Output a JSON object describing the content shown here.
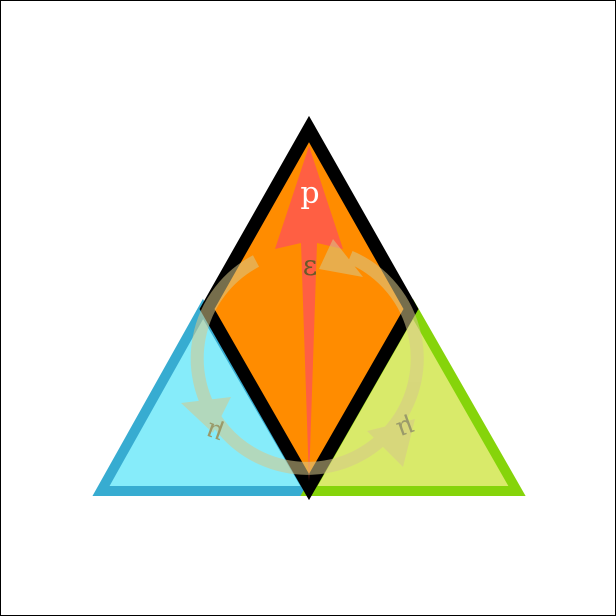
{
  "diagram": {
    "labels": {
      "top": "p",
      "center": "ε",
      "left": "μ",
      "right": "μ"
    },
    "colors": {
      "left_fill": "#86ecfa",
      "left_stroke": "#37acd1",
      "right_fill": "#d9ea6a",
      "right_stroke": "#86d40a",
      "diamond_fill": "#ff8c00",
      "diamond_stroke": "#000000",
      "arrow_red": "#ff5a4a",
      "cycle_arrow": "#d7c88a",
      "top_label": "#ffffff",
      "center_label": "#6a5a28",
      "side_label": "#9a9a6a"
    }
  }
}
